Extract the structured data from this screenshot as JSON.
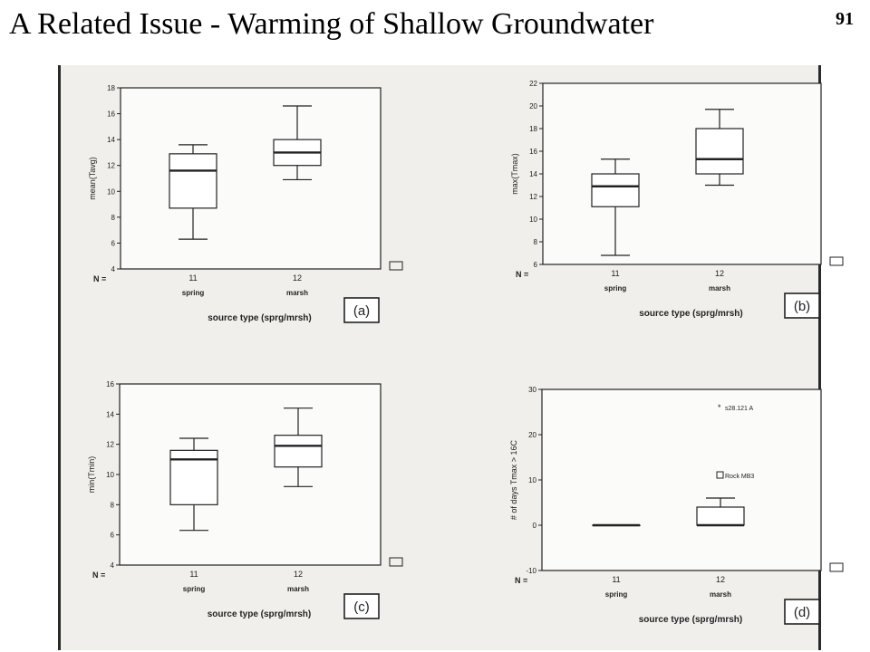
{
  "slide": {
    "title": "A Related Issue - Warming of Shallow Groundwater",
    "page_number": "91"
  },
  "chart_data": [
    {
      "type": "box",
      "panel_label": "(a)",
      "ylabel": "mean(Tavg)",
      "xlabel": "source type (sprg/mrsh)",
      "n_label": "N =",
      "ylim": [
        4,
        18
      ],
      "yticks": [
        4,
        6,
        8,
        10,
        12,
        14,
        16,
        18
      ],
      "categories": [
        "spring",
        "marsh"
      ],
      "counts": [
        "11",
        "12"
      ],
      "boxes": [
        {
          "min": 6.3,
          "q1": 8.7,
          "median": 11.6,
          "q3": 12.9,
          "max": 13.6
        },
        {
          "min": 10.9,
          "q1": 12.0,
          "median": 13.0,
          "q3": 14.0,
          "max": 16.6
        }
      ],
      "outliers": []
    },
    {
      "type": "box",
      "panel_label": "(b)",
      "ylabel": "max(Tmax)",
      "xlabel": "source type (sprg/mrsh)",
      "n_label": "N =",
      "ylim": [
        6,
        22
      ],
      "yticks": [
        6,
        8,
        10,
        12,
        14,
        16,
        18,
        20,
        22
      ],
      "categories": [
        "spring",
        "marsh"
      ],
      "counts": [
        "11",
        "12"
      ],
      "boxes": [
        {
          "min": 6.8,
          "q1": 11.1,
          "median": 12.9,
          "q3": 14.0,
          "max": 15.3
        },
        {
          "min": 13.0,
          "q1": 14.0,
          "median": 15.3,
          "q3": 18.0,
          "max": 19.7
        }
      ],
      "outliers": []
    },
    {
      "type": "box",
      "panel_label": "(c)",
      "ylabel": "min(Tmin)",
      "xlabel": "source type (sprg/mrsh)",
      "n_label": "N =",
      "ylim": [
        4,
        16
      ],
      "yticks": [
        4,
        6,
        8,
        10,
        12,
        14,
        16
      ],
      "categories": [
        "spring",
        "marsh"
      ],
      "counts": [
        "11",
        "12"
      ],
      "boxes": [
        {
          "min": 6.3,
          "q1": 8.0,
          "median": 11.0,
          "q3": 11.6,
          "max": 12.4
        },
        {
          "min": 9.2,
          "q1": 10.5,
          "median": 11.9,
          "q3": 12.6,
          "max": 14.4
        }
      ],
      "outliers": []
    },
    {
      "type": "box",
      "panel_label": "(d)",
      "ylabel": "# of days Tmax > 16C",
      "xlabel": "source type (sprg/mrsh)",
      "n_label": "N =",
      "ylim": [
        -10,
        30
      ],
      "yticks": [
        -10,
        0,
        10,
        20,
        30
      ],
      "categories": [
        "spring",
        "marsh"
      ],
      "counts": [
        "11",
        "12"
      ],
      "boxes": [
        {
          "min": 0,
          "q1": 0,
          "median": 0,
          "q3": 0,
          "max": 0
        },
        {
          "min": 0,
          "q1": 0,
          "median": 0,
          "q3": 4,
          "max": 6
        }
      ],
      "outliers": [
        {
          "category": 1,
          "value": 26,
          "label": "s28.121 A",
          "marker": "*"
        },
        {
          "category": 1,
          "value": 11,
          "label": "Rock  MB3",
          "marker": "o"
        }
      ]
    }
  ],
  "colors": {
    "scan_background": "#f0efeb",
    "ink": "#222222"
  }
}
